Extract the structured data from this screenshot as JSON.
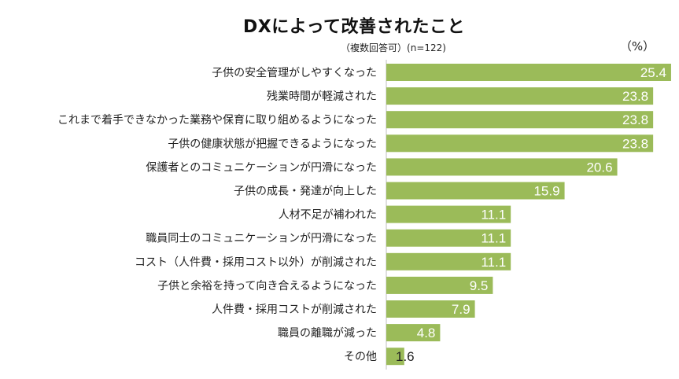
{
  "chart_data": {
    "type": "bar",
    "orientation": "horizontal",
    "title": "DXによって改善されたこと",
    "subtitle": "（複数回答可）(n=122)",
    "unit": "（%）",
    "xlim": [
      0,
      26
    ],
    "grid": false,
    "bar_color": "#9bbb59",
    "categories": [
      "子供の安全管理がしやすくなった",
      "残業時間が軽減された",
      "これまで着手できなかった業務や保育に取り組めるようになった",
      "子供の健康状態が把握できるようになった",
      "保護者とのコミュニケーションが円滑になった",
      "子供の成長・発達が向上した",
      "人材不足が補われた",
      "職員同士のコミュニケーションが円滑になった",
      "コスト（人件費・採用コスト以外）が削減された",
      "子供と余裕を持って向き合えるようになった",
      "人件費・採用コストが削減された",
      "職員の離職が減った",
      "その他"
    ],
    "values": [
      25.4,
      23.8,
      23.8,
      23.8,
      20.6,
      15.9,
      11.1,
      11.1,
      11.1,
      9.5,
      7.9,
      4.8,
      1.6
    ],
    "value_labels": [
      "25.4",
      "23.8",
      "23.8",
      "23.8",
      "20.6",
      "15.9",
      "11.1",
      "11.1",
      "11.1",
      "9.5",
      "7.9",
      "4.8",
      "1.6"
    ]
  }
}
